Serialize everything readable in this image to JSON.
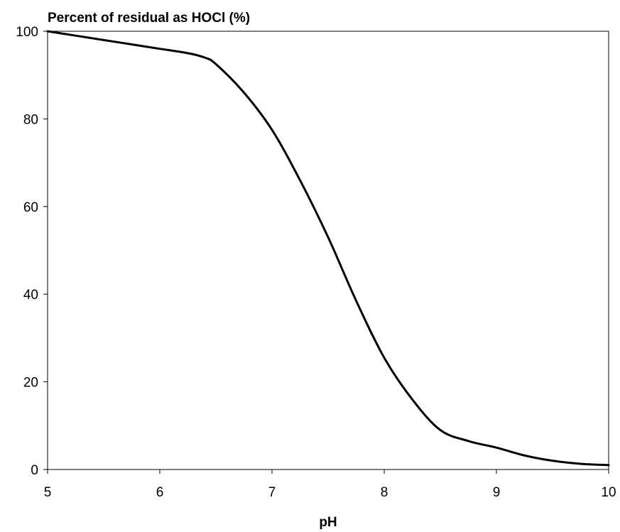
{
  "chart_data": {
    "type": "line",
    "title": "Percent of residual as HOCl (%)",
    "xlabel": "pH",
    "ylabel": "",
    "xlim": [
      5,
      10
    ],
    "ylim": [
      0,
      100
    ],
    "xticks": [
      5,
      6,
      7,
      8,
      9,
      10
    ],
    "yticks": [
      0,
      20,
      40,
      60,
      80,
      100
    ],
    "grid": false,
    "legend": "none",
    "series": [
      {
        "x": [
          5.0,
          5.25,
          5.5,
          5.75,
          6.0,
          6.25,
          6.4,
          6.5,
          6.75,
          7.0,
          7.25,
          7.5,
          7.75,
          8.0,
          8.25,
          8.5,
          8.75,
          9.0,
          9.25,
          9.5,
          9.75,
          10.0
        ],
        "values": [
          100,
          99,
          98,
          97,
          96,
          95,
          94,
          92.5,
          86,
          77.5,
          66,
          53,
          38.5,
          25.5,
          16,
          9,
          6.5,
          5,
          3.2,
          2.0,
          1.3,
          1.0
        ],
        "color": "#000000"
      }
    ]
  }
}
